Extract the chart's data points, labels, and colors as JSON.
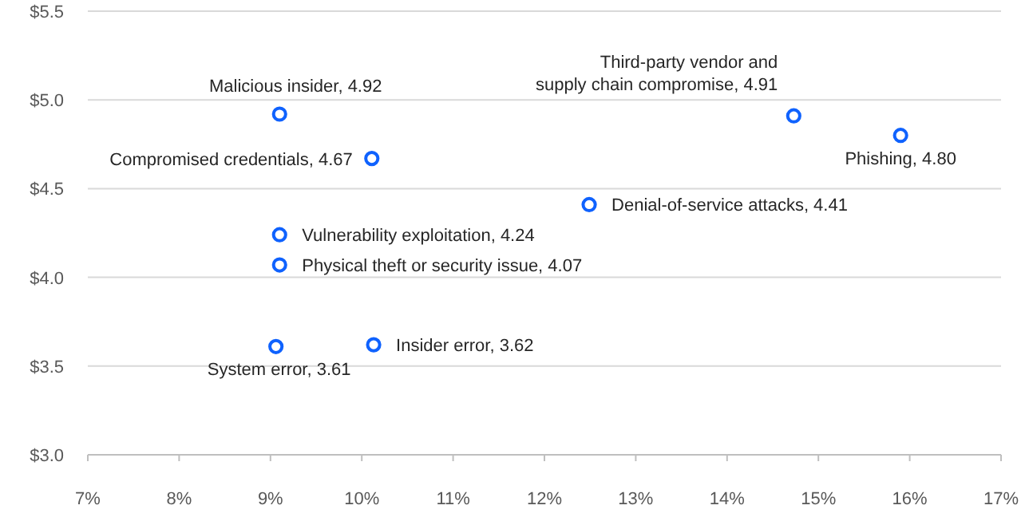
{
  "chart_data": {
    "type": "scatter",
    "x": [
      9.1,
      10.11,
      9.1,
      9.1,
      9.06,
      10.13,
      12.49,
      14.73,
      15.9
    ],
    "values": [
      4.92,
      4.67,
      4.24,
      4.07,
      3.61,
      3.62,
      4.41,
      4.91,
      4.8
    ],
    "value_labels": [
      "Malicious insider, 4.92",
      "Compromised credentials, 4.67",
      "Vulnerability exploitation, 4.24",
      "Physical theft or security issue, 4.07",
      "System error, 3.61",
      "Insider error, 3.62",
      "Denial-of-service attacks, 4.41",
      "Third-party vendor and\nsupply chain compromise, 4.91",
      "Phishing, 4.80"
    ],
    "color": "#0f62fe",
    "marker": "circle",
    "grid": "y",
    "xlim": [
      7,
      17
    ],
    "xticks": [
      {
        "value": 7,
        "label": "7%"
      },
      {
        "value": 8,
        "label": "8%"
      },
      {
        "value": 9,
        "label": "9%"
      },
      {
        "value": 10,
        "label": "10%"
      },
      {
        "value": 11,
        "label": "11%"
      },
      {
        "value": 12,
        "label": "12%"
      },
      {
        "value": 13,
        "label": "13%"
      },
      {
        "value": 14,
        "label": "14%"
      },
      {
        "value": 15,
        "label": "15%"
      },
      {
        "value": 16,
        "label": "16%"
      },
      {
        "value": 17,
        "label": "17%"
      }
    ],
    "ylim": [
      3,
      5.5
    ],
    "yticks": [
      {
        "value": 3,
        "label": "$3.0"
      },
      {
        "value": 3.5,
        "label": "$3.5"
      },
      {
        "value": 4,
        "label": "$4.0"
      },
      {
        "value": 4.5,
        "label": "$4.5"
      },
      {
        "value": 5,
        "label": "$5.0"
      },
      {
        "value": 5.5,
        "label": "$5.5"
      }
    ]
  }
}
